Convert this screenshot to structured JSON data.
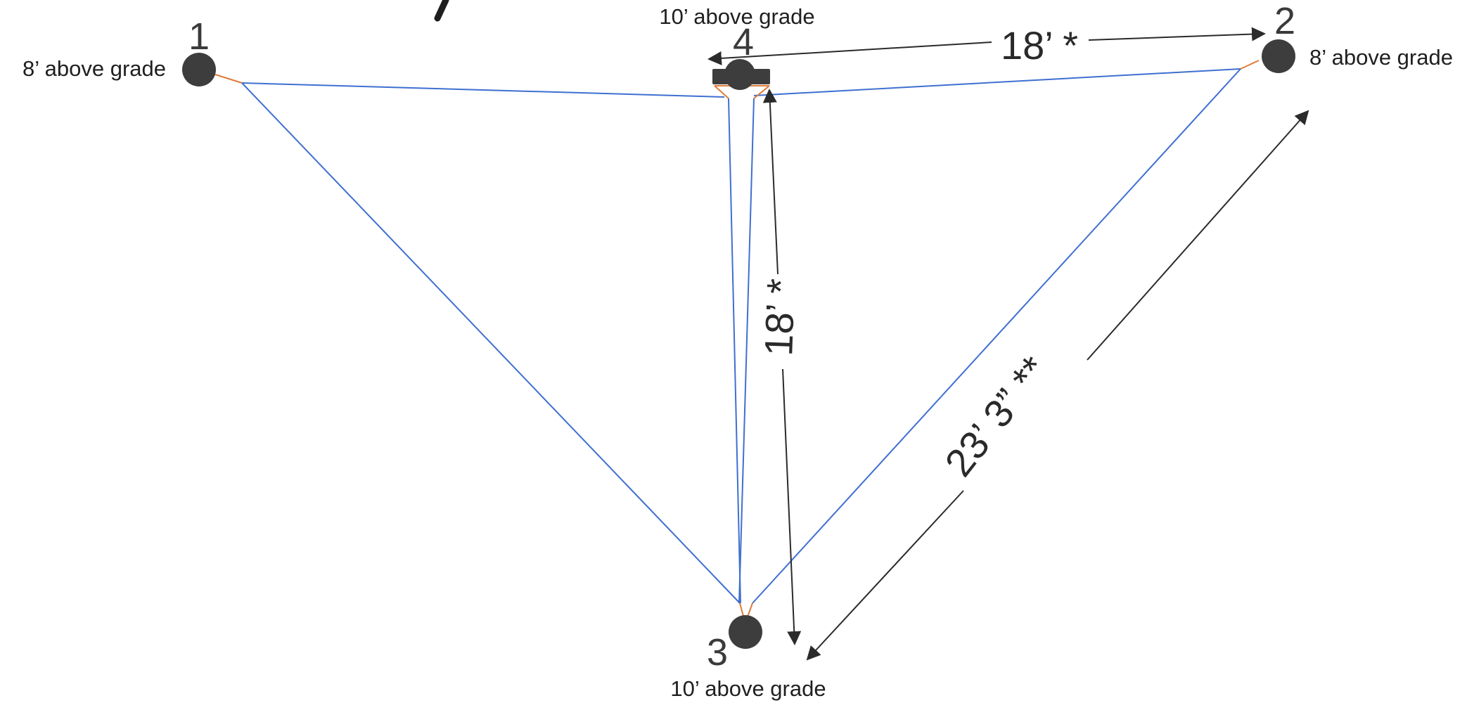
{
  "posts": [
    {
      "id": "1",
      "grade_label": "8’ above grade"
    },
    {
      "id": "2",
      "grade_label": "8’ above grade"
    },
    {
      "id": "3",
      "grade_label": "10’ above grade"
    },
    {
      "id": "4",
      "grade_label": "10’ above grade"
    }
  ],
  "dimensions": {
    "top_span": "18’ *",
    "center_span": "18’ *",
    "diagonal_span": "23’ 3” **"
  },
  "colors": {
    "sail_edge": "#3f6fd0",
    "hardware": "#e07b39",
    "post": "#3d3d3d"
  }
}
